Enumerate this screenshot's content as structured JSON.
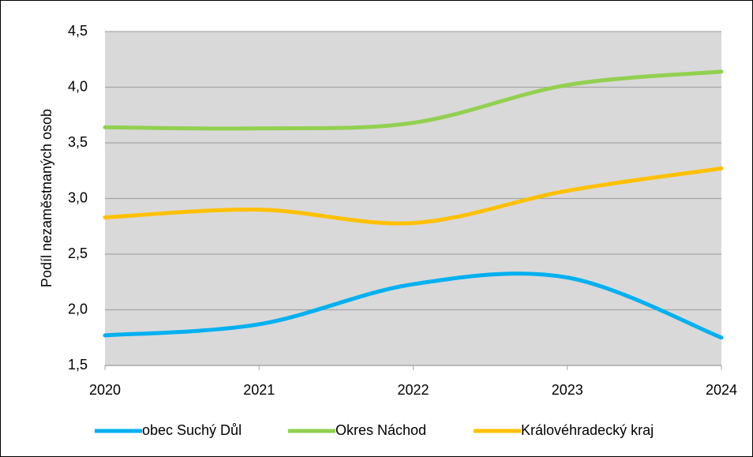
{
  "chart_data": {
    "type": "line",
    "y_label": "Podíl nezaměstnaných osob",
    "x": [
      2020,
      2021,
      2022,
      2023,
      2024
    ],
    "xlim": [
      2020,
      2024
    ],
    "xticks": [
      2020,
      2021,
      2022,
      2023,
      2024
    ],
    "ylim": [
      1.5,
      4.5
    ],
    "yticks": [
      {
        "value": 1.5,
        "label": "1,5"
      },
      {
        "value": 2.0,
        "label": "2,0"
      },
      {
        "value": 2.5,
        "label": "2,5"
      },
      {
        "value": 3.0,
        "label": "3,0"
      },
      {
        "value": 3.5,
        "label": "3,5"
      },
      {
        "value": 4.0,
        "label": "4,0"
      },
      {
        "value": 4.5,
        "label": "4,5"
      }
    ],
    "grid": true,
    "legend": "bottom",
    "smooth": true,
    "series": [
      {
        "name": "obec Suchý Důl",
        "color": "#00b0f0",
        "values": [
          1.77,
          1.87,
          2.23,
          2.29,
          1.75
        ]
      },
      {
        "name": "Okres Náchod",
        "color": "#92d050",
        "values": [
          3.64,
          3.63,
          3.68,
          4.02,
          4.14
        ]
      },
      {
        "name": "Královéhradecký kraj",
        "color": "#ffc000",
        "values": [
          2.83,
          2.9,
          2.78,
          3.07,
          3.27
        ]
      }
    ]
  }
}
